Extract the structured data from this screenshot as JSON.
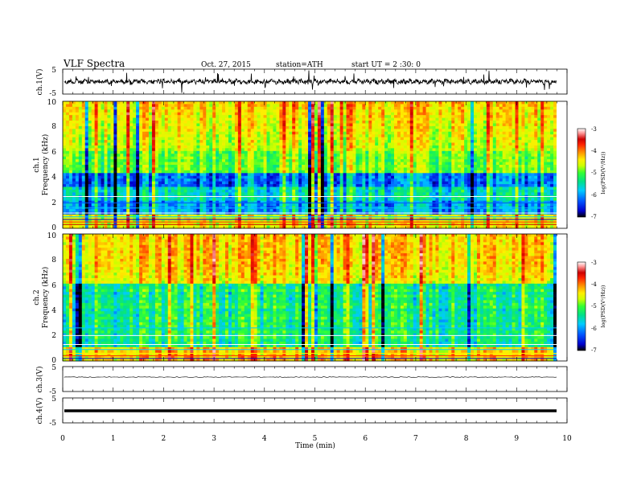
{
  "header": {
    "title": "VLF  Spectra",
    "date": "Oct. 27, 2015",
    "station": "station=ATH",
    "start_ut": "start  UT  =   2  :30: 0"
  },
  "chart_data": [
    {
      "type": "line",
      "panel": "ch1-waveform",
      "ylabel": "ch.1(V)",
      "ylim": [
        -5,
        5
      ],
      "yticks": [
        "5",
        "-5"
      ],
      "xlim": [
        0,
        10
      ],
      "baseline": 0,
      "description_of_trace": "noisy oscillating waveform near 0 V with frequent spikes"
    },
    {
      "type": "heatmap",
      "panel": "ch1-spectrogram",
      "ylabel": "ch.1\nFrequency (kHz)",
      "ylabel_line1": "ch.1",
      "ylabel_line2": "Frequency  (kHz)",
      "ylim": [
        0,
        10
      ],
      "yticks": [
        "10",
        "8",
        "6",
        "4",
        "2",
        "0"
      ],
      "xlim": [
        0,
        9.8
      ],
      "colorbar": {
        "label": "log(PSD(V²/Hz))",
        "range": [
          -7,
          -3
        ],
        "ticks": [
          "-3",
          "-4",
          "-5",
          "-6",
          "-7"
        ],
        "colors": [
          "#000000",
          "#0000cc",
          "#0055ff",
          "#00ccff",
          "#00e08a",
          "#33ff33",
          "#ccff00",
          "#ffee00",
          "#ff8800",
          "#ff2200",
          "#cc0000",
          "#ff9999",
          "#ffffff"
        ]
      }
    },
    {
      "type": "heatmap",
      "panel": "ch2-spectrogram",
      "ylabel_line1": "ch.2",
      "ylabel_line2": "Frequency  (kHz)",
      "ylim": [
        0,
        10
      ],
      "yticks": [
        "10",
        "8",
        "6",
        "4",
        "2",
        "0"
      ],
      "xlim": [
        0,
        9.8
      ],
      "colorbar": {
        "label": "log(PSD(V²/Hz))",
        "range": [
          -7,
          -3
        ],
        "ticks": [
          "-3",
          "-4",
          "-5",
          "-6",
          "-7"
        ]
      }
    },
    {
      "type": "line",
      "panel": "ch3-waveform",
      "ylabel": "ch.3(V)",
      "ylim": [
        -5,
        5
      ],
      "yticks": [
        "5",
        "-5"
      ],
      "level": 0
    },
    {
      "type": "line",
      "panel": "ch4-waveform",
      "ylabel": "ch.4(V)",
      "ylim": [
        -5,
        5
      ],
      "yticks": [
        "5",
        "-5"
      ],
      "level": 0
    }
  ],
  "xaxis": {
    "label": "Time  (min)",
    "range": [
      0,
      10
    ],
    "ticks": [
      "0",
      "1",
      "2",
      "3",
      "4",
      "5",
      "6",
      "7",
      "8",
      "9",
      "10"
    ]
  }
}
